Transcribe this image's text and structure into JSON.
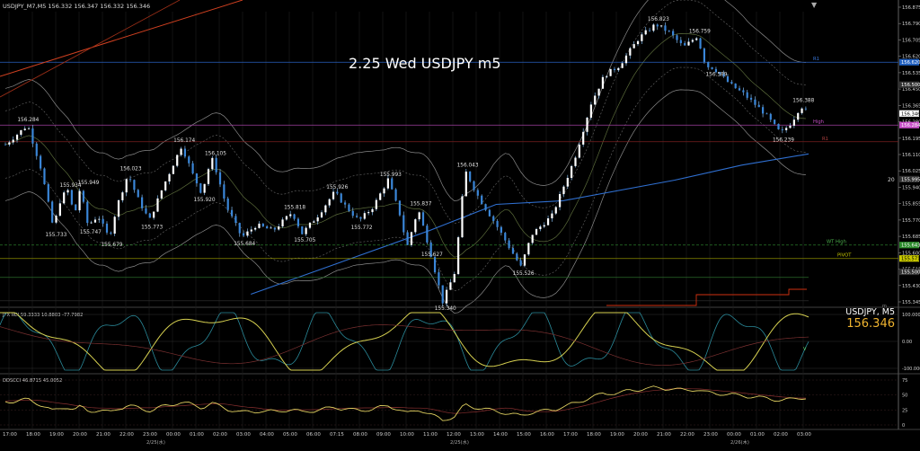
{
  "header": {
    "symbol_ohlc": "USDJPY_M7,M5  156.332 156.347 156.332 156.346",
    "corner_mark": "▼"
  },
  "chart_data": {
    "type": "candlestick",
    "title": "2.25 Wed USDJPY m5",
    "symbol_label": "USDJPY, M5",
    "last_price": "156.346",
    "price_range": [
      155.32,
      156.89
    ],
    "y_ticks": [
      "156.875",
      "156.790",
      "156.705",
      "156.620",
      "156.535",
      "156.450",
      "156.365",
      "156.280",
      "156.195",
      "156.110",
      "156.025",
      "155.940",
      "155.855",
      "155.770",
      "155.685",
      "155.600",
      "155.515",
      "155.430",
      "155.345"
    ],
    "price_tags": [
      {
        "text": "156.620",
        "price": 156.62,
        "color": "#1f5fbf"
      },
      {
        "text": "156.500",
        "price": 156.5,
        "color": "#333333"
      },
      {
        "text": "156.346",
        "price": 156.346,
        "color": "#ffffff"
      },
      {
        "text": "156.284",
        "price": 156.284,
        "color": "#c850c8"
      },
      {
        "text": "155.995",
        "price": 155.995,
        "color": "#333333"
      },
      {
        "text": "155.643",
        "price": 155.643,
        "color": "#2b8a2b"
      },
      {
        "text": "155.571",
        "price": 155.571,
        "color": "#c9c900"
      },
      {
        "text": "155.500",
        "price": 155.5,
        "color": "#333333"
      }
    ],
    "x_ticks": [
      "17:00",
      "18:00",
      "19:00",
      "20:00",
      "21:00",
      "22:00",
      "23:00",
      "00:00",
      "01:00",
      "02:00",
      "03:00",
      "04:00",
      "05:00",
      "06:00",
      "07:15",
      "08:00",
      "09:00",
      "10:00",
      "11:00",
      "12:00",
      "13:00",
      "14:00",
      "15:00",
      "16:00",
      "17:00",
      "18:00",
      "19:00",
      "20:00",
      "21:00",
      "22:00",
      "23:00",
      "00:00",
      "01:00",
      "02:00",
      "03:00"
    ],
    "date_labels": [
      {
        "text": "2/25(水)",
        "after_tick": 6
      },
      {
        "text": "2/25(水)",
        "after_tick": 19
      },
      {
        "text": "2/26(木)",
        "after_tick": 31
      }
    ],
    "price_path": [
      [
        0,
        156.18
      ],
      [
        2,
        156.284
      ],
      [
        3.2,
        156.05
      ],
      [
        4.3,
        155.733
      ],
      [
        5,
        155.9
      ],
      [
        5.6,
        155.934
      ],
      [
        6.2,
        155.8
      ],
      [
        6.7,
        155.949
      ],
      [
        7.4,
        155.747
      ],
      [
        8.3,
        155.8
      ],
      [
        9.3,
        155.679
      ],
      [
        10,
        155.85
      ],
      [
        11,
        156.023
      ],
      [
        11.8,
        155.9
      ],
      [
        12.9,
        155.773
      ],
      [
        14.1,
        155.95
      ],
      [
        15.8,
        156.174
      ],
      [
        16.8,
        156.02
      ],
      [
        17.6,
        155.92
      ],
      [
        18.2,
        156.05
      ],
      [
        18.6,
        156.105
      ],
      [
        19.8,
        155.85
      ],
      [
        21.2,
        155.684
      ],
      [
        22.5,
        155.75
      ],
      [
        24,
        155.72
      ],
      [
        25.7,
        155.818
      ],
      [
        26.6,
        155.705
      ],
      [
        28,
        155.8
      ],
      [
        29.5,
        155.926
      ],
      [
        30.5,
        155.85
      ],
      [
        31.7,
        155.772
      ],
      [
        33,
        155.85
      ],
      [
        34.3,
        155.993
      ],
      [
        35.4,
        155.8
      ],
      [
        36,
        155.63
      ],
      [
        37,
        155.837
      ],
      [
        38,
        155.627
      ],
      [
        39.2,
        155.34
      ],
      [
        40.3,
        155.5
      ],
      [
        41.2,
        156.043
      ],
      [
        42.4,
        155.9
      ],
      [
        44,
        155.75
      ],
      [
        46.2,
        155.526
      ],
      [
        47.2,
        155.7
      ],
      [
        49,
        155.8
      ],
      [
        51,
        156.1
      ],
      [
        52.5,
        156.4
      ],
      [
        53.7,
        156.55
      ],
      [
        55,
        156.6
      ],
      [
        56.8,
        156.75
      ],
      [
        58.3,
        156.823
      ],
      [
        59.5,
        156.78
      ],
      [
        60.8,
        156.7
      ],
      [
        62,
        156.759
      ],
      [
        62.8,
        156.6
      ],
      [
        63.5,
        156.589
      ],
      [
        65,
        156.5
      ],
      [
        66.2,
        156.45
      ],
      [
        68,
        156.35
      ],
      [
        69.5,
        156.239
      ],
      [
        70.5,
        156.3
      ],
      [
        71.3,
        156.388
      ],
      [
        72,
        156.346
      ]
    ],
    "price_labels": [
      {
        "text": "156.284",
        "i": 1.8,
        "p": 156.284,
        "pos": "above"
      },
      {
        "text": "155.733",
        "i": 4.3,
        "p": 155.733,
        "pos": "below"
      },
      {
        "text": "155.934",
        "i": 5.6,
        "p": 155.934,
        "pos": "above"
      },
      {
        "text": "155.949",
        "i": 7.2,
        "p": 155.949,
        "pos": "above"
      },
      {
        "text": "155.747",
        "i": 7.4,
        "p": 155.747,
        "pos": "below"
      },
      {
        "text": "155.679",
        "i": 9.3,
        "p": 155.679,
        "pos": "below"
      },
      {
        "text": "156.023",
        "i": 11,
        "p": 156.023,
        "pos": "above"
      },
      {
        "text": "155.773",
        "i": 12.9,
        "p": 155.773,
        "pos": "below"
      },
      {
        "text": "156.174",
        "i": 15.8,
        "p": 156.174,
        "pos": "above"
      },
      {
        "text": "155.920",
        "i": 17.6,
        "p": 155.92,
        "pos": "below"
      },
      {
        "text": "156.105",
        "i": 18.6,
        "p": 156.105,
        "pos": "above"
      },
      {
        "text": "155.684",
        "i": 21.2,
        "p": 155.684,
        "pos": "below"
      },
      {
        "text": "155.818",
        "i": 25.7,
        "p": 155.818,
        "pos": "above"
      },
      {
        "text": "155.705",
        "i": 26.6,
        "p": 155.705,
        "pos": "below"
      },
      {
        "text": "155.926",
        "i": 29.5,
        "p": 155.926,
        "pos": "above"
      },
      {
        "text": "155.772",
        "i": 31.7,
        "p": 155.772,
        "pos": "below"
      },
      {
        "text": "155.993",
        "i": 34.3,
        "p": 155.993,
        "pos": "above"
      },
      {
        "text": "155.837",
        "i": 37,
        "p": 155.837,
        "pos": "above"
      },
      {
        "text": "155.627",
        "i": 38,
        "p": 155.627,
        "pos": "below"
      },
      {
        "text": "155.340",
        "i": 39.2,
        "p": 155.34,
        "pos": "below"
      },
      {
        "text": "156.043",
        "i": 41.2,
        "p": 156.043,
        "pos": "above"
      },
      {
        "text": "155.526",
        "i": 46.2,
        "p": 155.526,
        "pos": "below"
      },
      {
        "text": "156.823",
        "i": 58.3,
        "p": 156.823,
        "pos": "above"
      },
      {
        "text": "156.759",
        "i": 62,
        "p": 156.759,
        "pos": "above"
      },
      {
        "text": "156.589",
        "i": 63.5,
        "p": 156.589,
        "pos": "below"
      },
      {
        "text": "156.388",
        "i": 71.3,
        "p": 156.388,
        "pos": "above"
      },
      {
        "text": "156.239",
        "i": 69.5,
        "p": 156.239,
        "pos": "below"
      }
    ],
    "levels": [
      {
        "name": "R1",
        "price": 156.62,
        "color": "#2a5fc0",
        "label_color": "#3a7ae0"
      },
      {
        "name": "High",
        "price": 156.284,
        "color": "#a040a0",
        "label_color": "#c850c8"
      },
      {
        "name": "R1",
        "price": 156.195,
        "color": "#7a2020",
        "label_color": "#b04040"
      },
      {
        "name": "WT High",
        "price": 155.643,
        "color": "#2a7a2a",
        "label_color": "#4caf4c"
      },
      {
        "name": "PIVOT",
        "price": 155.571,
        "color": "#8a8a00",
        "label_color": "#c9c900"
      }
    ],
    "fixed_level_price": 155.47,
    "ma_blue": [
      [
        22,
        155.38
      ],
      [
        30,
        155.55
      ],
      [
        38,
        155.72
      ],
      [
        44,
        155.86
      ],
      [
        50,
        155.88
      ],
      [
        60,
        155.99
      ],
      [
        66,
        156.07
      ],
      [
        72,
        156.13
      ]
    ],
    "osc1": {
      "label": "JFX RCI 59.3333 10.8803 -77.7982",
      "levels": [
        "100.0000",
        "0.00",
        "-100.0000"
      ],
      "value_tag": "V"
    },
    "osc2": {
      "label": "DDSCCI 46.8715 45.0052",
      "levels": [
        "75",
        "50",
        "25",
        "0"
      ]
    },
    "top_corner_tag": "m",
    "box_label": "20"
  }
}
